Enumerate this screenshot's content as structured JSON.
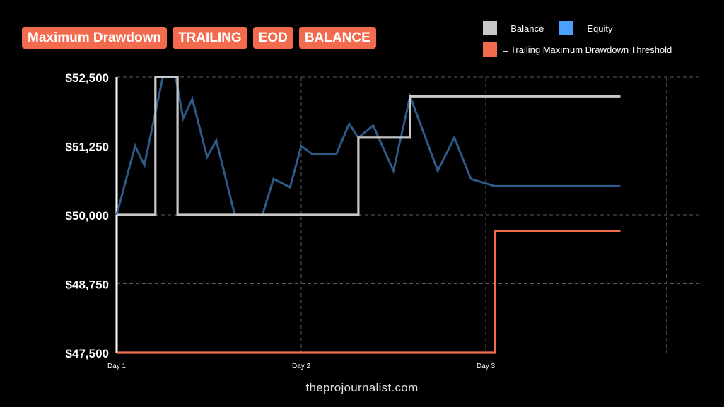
{
  "tags": [
    "Maximum Drawdown",
    "TRAILING",
    "EOD",
    "BALANCE"
  ],
  "legend": {
    "balance": {
      "label": "= Balance",
      "color": "#c8c8c8"
    },
    "equity": {
      "label": "= Equity",
      "color": "#4a9fff"
    },
    "threshold": {
      "label": "= Trailing Maximum Drawdown Threshold",
      "color": "#f26b4f"
    }
  },
  "footer": "theprojournalist.com",
  "chart_data": {
    "type": "line",
    "title": "",
    "xlabel": "",
    "ylabel": "",
    "x_ticks": [
      {
        "x": 0,
        "label": "Day 1"
      },
      {
        "x": 1,
        "label": "Day 2"
      },
      {
        "x": 2,
        "label": "Day 3"
      }
    ],
    "xlim": [
      0,
      3.05
    ],
    "ylim": [
      47500,
      52500
    ],
    "y_ticks": [
      {
        "value": 52500,
        "label": "$52,500"
      },
      {
        "value": 51250,
        "label": "$51,250"
      },
      {
        "value": 50000,
        "label": "$50,000"
      },
      {
        "value": 48750,
        "label": "$48,750"
      },
      {
        "value": 47500,
        "label": "$47,500"
      }
    ],
    "grid": true,
    "series": [
      {
        "name": "Balance",
        "color": "#c8c8c8",
        "step": true,
        "points": [
          [
            0,
            50000
          ],
          [
            0.21,
            50000
          ],
          [
            0.21,
            52500
          ],
          [
            0.33,
            52500
          ],
          [
            0.33,
            50000
          ],
          [
            1.31,
            50000
          ],
          [
            1.31,
            51400
          ],
          [
            1.59,
            51400
          ],
          [
            1.59,
            52150
          ],
          [
            2.73,
            52150
          ]
        ]
      },
      {
        "name": "Equity",
        "color": "#2e5a88",
        "step": false,
        "points": [
          [
            0,
            50000
          ],
          [
            0.1,
            51250
          ],
          [
            0.15,
            50900
          ],
          [
            0.25,
            52500
          ],
          [
            0.32,
            52500
          ],
          [
            0.36,
            51750
          ],
          [
            0.41,
            52100
          ],
          [
            0.49,
            51050
          ],
          [
            0.54,
            51350
          ],
          [
            0.64,
            50000
          ],
          [
            0.79,
            50000
          ],
          [
            0.85,
            50650
          ],
          [
            0.94,
            50500
          ],
          [
            1.0,
            51250
          ],
          [
            1.06,
            51100
          ],
          [
            1.19,
            51100
          ],
          [
            1.26,
            51650
          ],
          [
            1.31,
            51400
          ],
          [
            1.39,
            51620
          ],
          [
            1.5,
            50800
          ],
          [
            1.59,
            52150
          ],
          [
            1.74,
            50800
          ],
          [
            1.83,
            51400
          ],
          [
            1.92,
            50650
          ],
          [
            2.05,
            50520
          ],
          [
            2.73,
            50520
          ]
        ]
      },
      {
        "name": "Trailing Maximum Drawdown Threshold",
        "color": "#f26b4f",
        "step": true,
        "points": [
          [
            0,
            47500
          ],
          [
            2.05,
            47500
          ],
          [
            2.05,
            49700
          ],
          [
            2.73,
            49700
          ]
        ]
      }
    ]
  }
}
